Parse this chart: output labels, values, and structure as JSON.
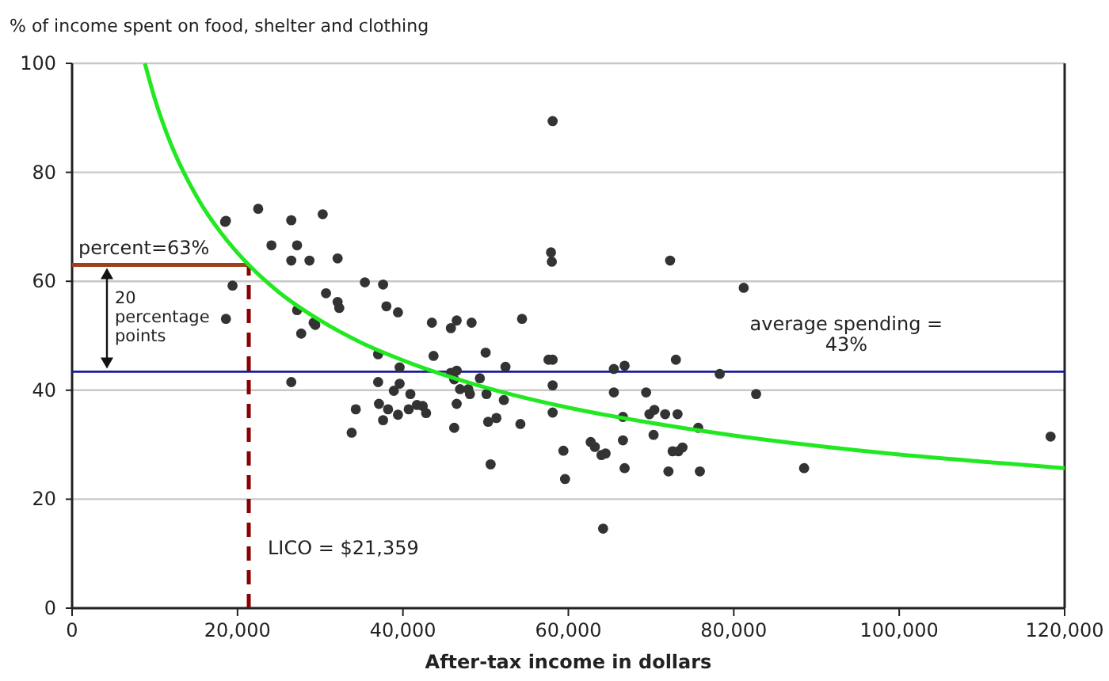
{
  "chart_data": {
    "type": "scatter",
    "ylabel": "% of income spent on food, shelter and clothing",
    "xlabel": "After-tax income in dollars",
    "xlim": [
      0,
      120000
    ],
    "xticks": [
      0,
      {
        "value": 20000,
        "label": "20,000"
      },
      {
        "value": 40000,
        "label": "40,000"
      },
      {
        "value": 60000,
        "label": "60,000"
      },
      {
        "value": 80000,
        "label": "80,000"
      },
      {
        "value": 100000,
        "label": "100,000"
      },
      {
        "value": 120000,
        "label": "120,000"
      }
    ],
    "ylim": [
      0,
      100
    ],
    "yticks": [
      0,
      20,
      40,
      60,
      80,
      100
    ],
    "grid": "y",
    "marker": "circle",
    "series": [
      {
        "color": "#333333",
        "x": [
          18500,
          18600,
          22500,
          26500,
          30300,
          24100,
          27200,
          26500,
          28700,
          32100,
          19400,
          18600,
          35400,
          37600,
          30700,
          32100,
          32300,
          27200,
          29200,
          29400,
          27700,
          38000,
          39400,
          43500,
          45800,
          46500,
          48300,
          54400,
          57900,
          58000,
          37000,
          39600,
          43700,
          50000,
          52400,
          57600,
          58100,
          45800,
          46500,
          46200,
          46900,
          47900,
          48100,
          49300,
          50100,
          26500,
          37000,
          39600,
          38900,
          40900,
          37100,
          38200,
          37600,
          39400,
          40700,
          41700,
          42400,
          42800,
          34300,
          33800,
          46500,
          46200,
          50300,
          51300,
          52200,
          54200,
          50600,
          58100,
          58100,
          59400,
          59600,
          58100,
          72300,
          81200,
          73000,
          65500,
          66800,
          78300,
          82700,
          65500,
          69400,
          69800,
          70400,
          71700,
          73200,
          66600,
          75700,
          70300,
          66600,
          62700,
          63200,
          64000,
          64500,
          72600,
          73300,
          73800,
          66800,
          72100,
          75900,
          88500,
          118300,
          64200
        ],
        "values": [
          70.9,
          71.1,
          73.3,
          71.2,
          72.3,
          66.6,
          66.6,
          63.8,
          63.8,
          64.2,
          59.2,
          53.1,
          59.8,
          59.4,
          57.8,
          56.2,
          55.1,
          54.7,
          52.4,
          52.0,
          50.4,
          55.4,
          54.3,
          52.4,
          51.4,
          52.8,
          52.4,
          53.1,
          65.3,
          63.6,
          46.6,
          44.2,
          46.3,
          46.9,
          44.3,
          45.6,
          45.6,
          43.2,
          43.6,
          42.0,
          40.2,
          40.2,
          39.3,
          42.2,
          39.3,
          41.5,
          41.5,
          41.2,
          39.9,
          39.3,
          37.5,
          36.5,
          34.5,
          35.5,
          36.5,
          37.3,
          37.1,
          35.8,
          36.5,
          32.2,
          37.5,
          33.1,
          34.2,
          34.9,
          38.2,
          33.8,
          26.4,
          40.9,
          35.9,
          28.9,
          23.7,
          89.4,
          63.8,
          58.8,
          45.6,
          43.9,
          44.5,
          43.0,
          39.3,
          39.6,
          39.6,
          35.6,
          36.4,
          35.6,
          35.6,
          35.1,
          33.1,
          31.8,
          30.8,
          30.5,
          29.6,
          28.1,
          28.4,
          28.8,
          28.8,
          29.5,
          25.7,
          25.1,
          25.1,
          25.7,
          31.5,
          14.6
        ]
      },
      {
        "type": "line",
        "color": "#22e822",
        "marker": "none",
        "x": [
          8800,
          10000,
          12000,
          14000,
          16000,
          18000,
          21359,
          25000,
          30000,
          35000,
          40000,
          50000,
          60000,
          70000,
          80000,
          90000,
          100000,
          110000,
          120000
        ],
        "values": [
          100,
          93.5,
          85.0,
          78.5,
          73.2,
          68.9,
          63,
          58.0,
          52.8,
          48.7,
          45.5,
          40.5,
          36.8,
          34.0,
          31.7,
          29.8,
          28.2,
          26.9,
          25.7
        ]
      }
    ],
    "ref_lines": [
      {
        "axis": "y",
        "value": 43.4,
        "label": "average spending =\n43%",
        "color": "#1a1aa0",
        "line_style": "solid"
      },
      {
        "axis": "y",
        "value": 63,
        "label": "percent=63%",
        "color": "#a0401a",
        "line_style": "solid"
      },
      {
        "axis": "x",
        "value": 21359,
        "label": "LICO = $21,359",
        "color": "#8b0000",
        "line_style": "dashed"
      }
    ],
    "annotations": [
      "20\npercentage\npoints"
    ]
  }
}
